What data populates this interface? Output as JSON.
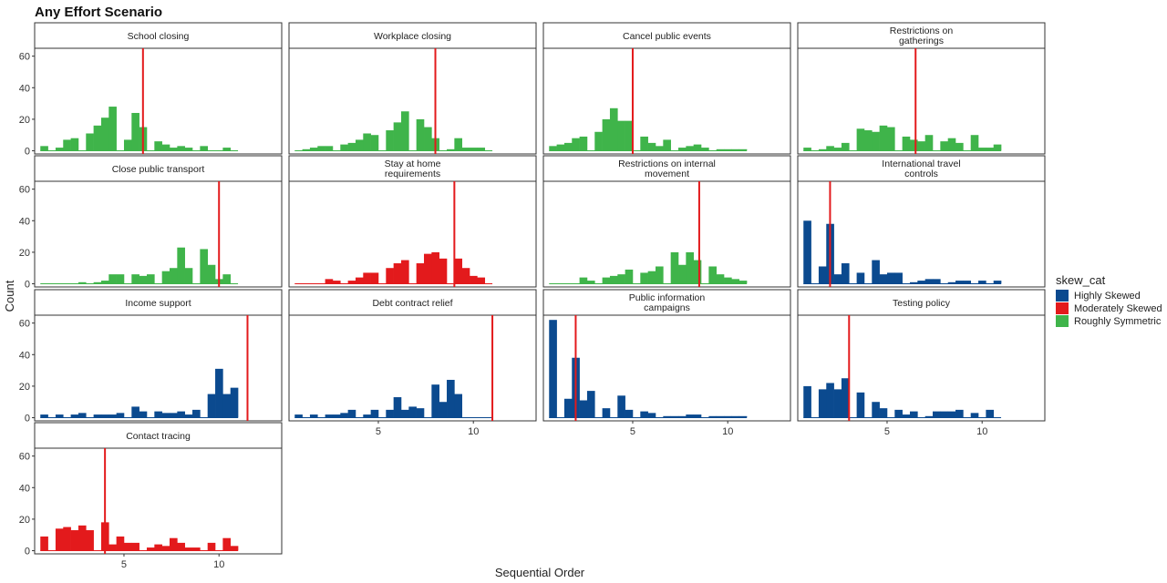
{
  "chart_data": {
    "type": "bar",
    "title": "Any Effort Scenario",
    "xlabel": "Sequential Order",
    "ylabel": "Count",
    "xlim": [
      0.3,
      13.3
    ],
    "ylim": [
      -2,
      65
    ],
    "y_ticks": [
      0,
      20,
      40,
      60
    ],
    "x_ticks": [
      5,
      10
    ],
    "grid": false,
    "legend": {
      "title": "skew_cat",
      "position": "right",
      "items": [
        {
          "label": "Highly Skewed",
          "color": "#0b4a8f"
        },
        {
          "label": "Moderately Skewed",
          "color": "#e31a1c"
        },
        {
          "label": "Roughly Symmetric",
          "color": "#3fb44a"
        }
      ]
    },
    "bin_start": 0.6,
    "bin_width": 0.4,
    "facets": [
      {
        "title": [
          "School closing"
        ],
        "category": "Roughly Symmetric",
        "color": "#3fb44a",
        "marker": 6.0,
        "counts": [
          3,
          0,
          2,
          7,
          8,
          0,
          11,
          16,
          21,
          28,
          0,
          7,
          24,
          15,
          0,
          6,
          4,
          2,
          3,
          2,
          0,
          3,
          0,
          0,
          2,
          0
        ]
      },
      {
        "title": [
          "Workplace closing"
        ],
        "category": "Roughly Symmetric",
        "color": "#3fb44a",
        "marker": 8.0,
        "counts": [
          0,
          1,
          2,
          3,
          3,
          0,
          4,
          5,
          7,
          11,
          10,
          0,
          13,
          18,
          25,
          0,
          20,
          15,
          8,
          0,
          1,
          8,
          2,
          2,
          2,
          0
        ]
      },
      {
        "title": [
          "Cancel public events"
        ],
        "category": "Roughly Symmetric",
        "color": "#3fb44a",
        "marker": 5.0,
        "counts": [
          3,
          4,
          5,
          8,
          9,
          0,
          12,
          20,
          27,
          19,
          19,
          0,
          9,
          5,
          3,
          7,
          0,
          2,
          3,
          4,
          2,
          0,
          1,
          1,
          1,
          1
        ]
      },
      {
        "title": [
          "Restrictions on",
          "gatherings"
        ],
        "category": "Roughly Symmetric",
        "color": "#3fb44a",
        "marker": 6.5,
        "counts": [
          2,
          0,
          1,
          3,
          2,
          5,
          0,
          14,
          13,
          12,
          16,
          15,
          0,
          9,
          7,
          6,
          10,
          0,
          6,
          8,
          5,
          0,
          10,
          2,
          2,
          4
        ]
      },
      {
        "title": [
          "Close public transport"
        ],
        "category": "Roughly Symmetric",
        "color": "#3fb44a",
        "marker": 10.0,
        "counts": [
          0,
          0,
          0,
          0,
          0,
          1,
          0,
          1,
          2,
          6,
          6,
          0,
          6,
          5,
          6,
          0,
          8,
          10,
          23,
          10,
          0,
          22,
          12,
          3,
          6,
          0
        ]
      },
      {
        "title": [
          "Stay at home",
          "requirements"
        ],
        "category": "Moderately Skewed",
        "color": "#e31a1c",
        "marker": 9.0,
        "counts": [
          0,
          0,
          0,
          0,
          3,
          2,
          0,
          2,
          4,
          7,
          7,
          0,
          10,
          13,
          15,
          0,
          13,
          19,
          20,
          16,
          0,
          16,
          10,
          5,
          4,
          0
        ]
      },
      {
        "title": [
          "Restrictions on internal",
          "movement"
        ],
        "category": "Roughly Symmetric",
        "color": "#3fb44a",
        "marker": 8.5,
        "counts": [
          0,
          0,
          0,
          0,
          4,
          2,
          0,
          4,
          5,
          6,
          9,
          0,
          7,
          8,
          11,
          0,
          20,
          12,
          20,
          15,
          0,
          11,
          6,
          4,
          3,
          2
        ]
      },
      {
        "title": [
          "International travel",
          "controls"
        ],
        "category": "Highly Skewed",
        "color": "#0b4a8f",
        "marker": 2.0,
        "counts": [
          40,
          0,
          11,
          38,
          6,
          13,
          0,
          7,
          0,
          15,
          6,
          7,
          7,
          0,
          1,
          2,
          3,
          3,
          0,
          1,
          2,
          2,
          0,
          2,
          0,
          2
        ]
      },
      {
        "title": [
          "Income support"
        ],
        "category": "Highly Skewed",
        "color": "#0b4a8f",
        "marker": 11.5,
        "counts": [
          2,
          0,
          2,
          0,
          2,
          3,
          0,
          2,
          2,
          2,
          3,
          0,
          7,
          4,
          0,
          4,
          3,
          3,
          4,
          2,
          5,
          0,
          15,
          31,
          15,
          19
        ]
      },
      {
        "title": [
          "Debt contract relief"
        ],
        "category": "Highly Skewed",
        "color": "#0b4a8f",
        "marker": 11.0,
        "counts": [
          2,
          0,
          2,
          0,
          2,
          2,
          3,
          5,
          0,
          2,
          5,
          0,
          5,
          13,
          5,
          7,
          6,
          0,
          21,
          10,
          24,
          15,
          0,
          0,
          0,
          0
        ]
      },
      {
        "title": [
          "Public information",
          "campaigns"
        ],
        "category": "Highly Skewed",
        "color": "#0b4a8f",
        "marker": 2.0,
        "counts": [
          62,
          0,
          12,
          38,
          11,
          17,
          0,
          6,
          0,
          14,
          5,
          0,
          4,
          3,
          0,
          1,
          1,
          1,
          2,
          2,
          0,
          1,
          1,
          1,
          1,
          1
        ]
      },
      {
        "title": [
          "Testing policy"
        ],
        "category": "Highly Skewed",
        "color": "#0b4a8f",
        "marker": 3.0,
        "counts": [
          20,
          0,
          18,
          22,
          18,
          25,
          0,
          16,
          0,
          10,
          6,
          0,
          5,
          2,
          4,
          0,
          1,
          4,
          4,
          4,
          5,
          0,
          3,
          0,
          5,
          0
        ]
      },
      {
        "title": [
          "Contact tracing"
        ],
        "category": "Moderately Skewed",
        "color": "#e31a1c",
        "marker": 4.0,
        "counts": [
          9,
          0,
          14,
          15,
          13,
          16,
          13,
          0,
          18,
          4,
          9,
          5,
          5,
          0,
          2,
          4,
          3,
          8,
          5,
          2,
          2,
          0,
          5,
          0,
          8,
          3
        ]
      }
    ]
  }
}
